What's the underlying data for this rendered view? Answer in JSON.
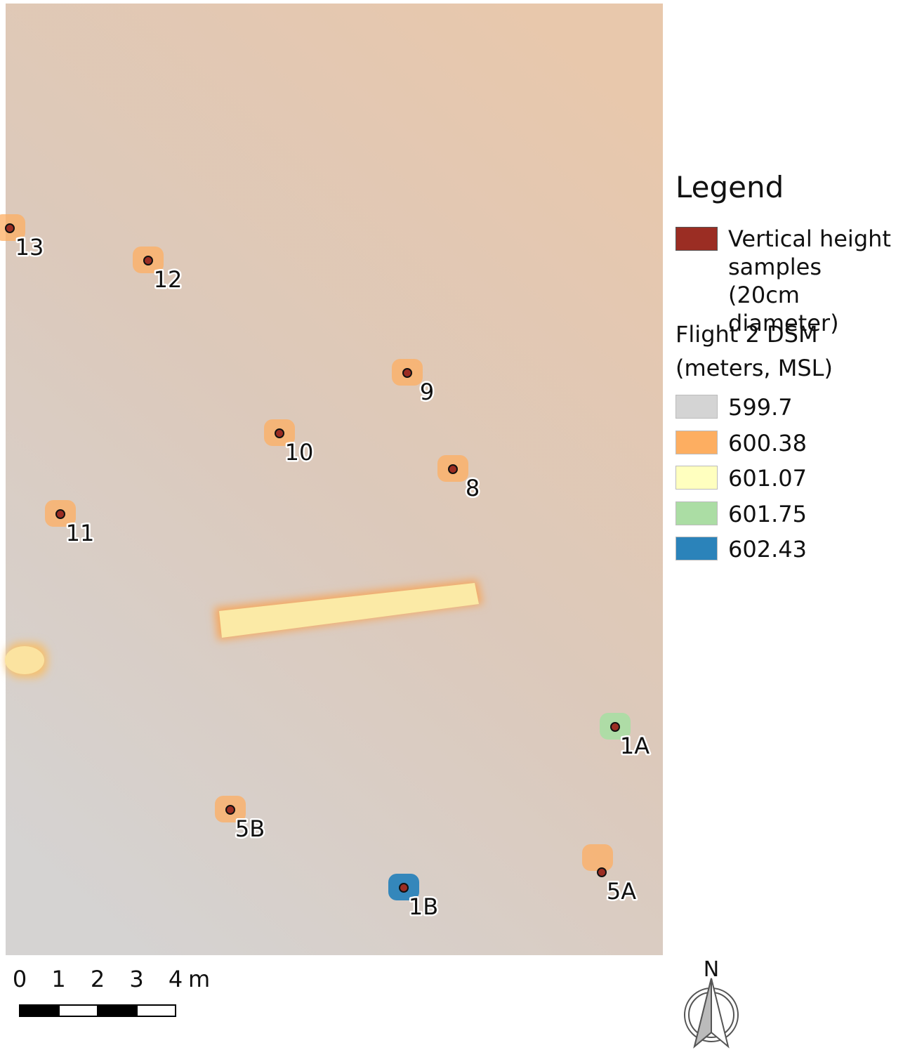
{
  "legend": {
    "title": "Legend",
    "samples_label": "Vertical height samples (20cm diameter)",
    "samples_color": "#9b2d23",
    "dsm_title": "Flight 2 DSM (meters, MSL)",
    "dsm_classes": [
      {
        "value": 599.7,
        "color": "#d4d4d4"
      },
      {
        "value": 600.38,
        "color": "#fdae61"
      },
      {
        "value": 601.07,
        "color": "#ffffbf"
      },
      {
        "value": 601.75,
        "color": "#abdda4"
      },
      {
        "value": 602.43,
        "color": "#2b83ba"
      }
    ]
  },
  "points": [
    {
      "label": "13"
    },
    {
      "label": "12"
    },
    {
      "label": "9"
    },
    {
      "label": "10"
    },
    {
      "label": "8"
    },
    {
      "label": "11"
    },
    {
      "label": "1A"
    },
    {
      "label": "5B"
    },
    {
      "label": "5A"
    },
    {
      "label": "1B"
    }
  ],
  "scale_bar": {
    "ticks": [
      0,
      1,
      2,
      3,
      4
    ],
    "unit": "m"
  },
  "north_arrow": "N"
}
